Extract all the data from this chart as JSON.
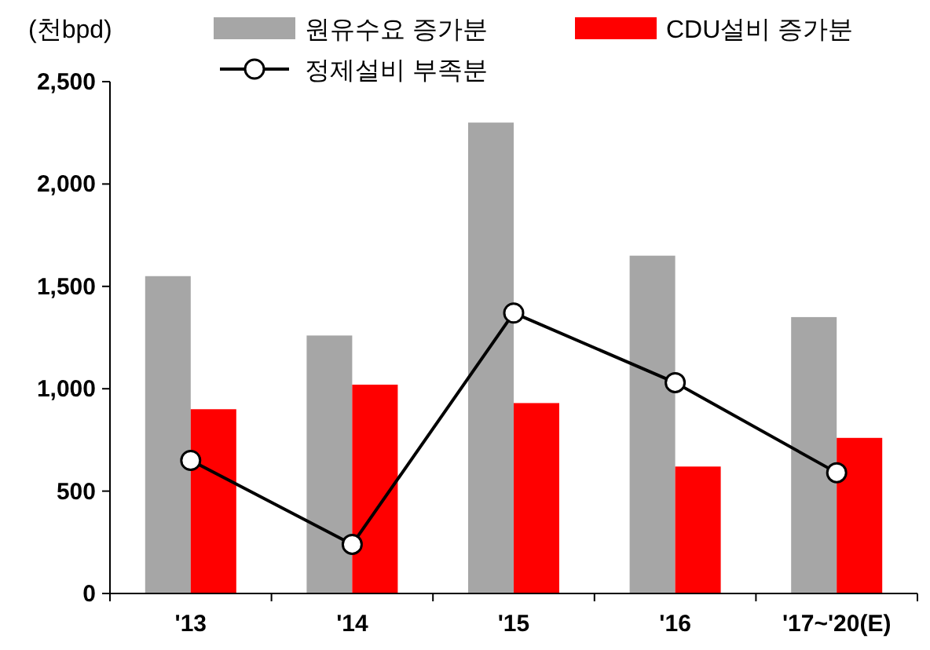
{
  "chart_data": {
    "type": "bar",
    "ylabel": "(천bpd)",
    "categories": [
      "'13",
      "'14",
      "'15",
      "'16",
      "'17~'20(E)"
    ],
    "series": [
      {
        "name": "원유수요 증가분",
        "color": "#a6a6a6",
        "values": [
          1550,
          1260,
          2300,
          1650,
          1350
        ]
      },
      {
        "name": "CDU설비 증가분",
        "color": "#ff0000",
        "values": [
          900,
          1020,
          930,
          620,
          760
        ]
      },
      {
        "name": "정제설비 부족분",
        "type": "line",
        "color": "#000000",
        "values": [
          650,
          240,
          1370,
          1030,
          590
        ],
        "marker": "circle"
      }
    ],
    "ylim": [
      0,
      2500
    ],
    "yticks": [
      0,
      {
        "value": 500,
        "label": "500"
      },
      {
        "value": 1000,
        "label": "1,000"
      },
      {
        "value": 1500,
        "label": "1,500"
      },
      {
        "value": 2000,
        "label": "2,000"
      },
      {
        "value": 2500,
        "label": "2,500"
      }
    ],
    "grid": false,
    "legend": "top"
  }
}
